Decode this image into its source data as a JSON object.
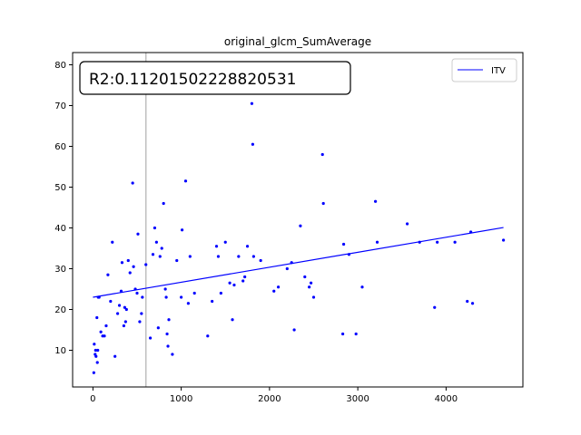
{
  "chart_data": {
    "type": "scatter",
    "title": "original_glcm_SumAverage",
    "xlabel": "",
    "ylabel": "",
    "xlim": [
      -230,
      4870
    ],
    "ylim": [
      1,
      83
    ],
    "x_ticks": [
      0,
      1000,
      2000,
      3000,
      4000
    ],
    "y_ticks": [
      10,
      20,
      30,
      40,
      50,
      60,
      70,
      80
    ],
    "grid": false,
    "legend": {
      "position": "top-right",
      "entries": [
        {
          "label": "ITV",
          "color": "#0000ff"
        }
      ]
    },
    "annotation": {
      "text": "R2:0.11201502228820531",
      "position": "top-left"
    },
    "vline": {
      "x": 600,
      "color": "#bfbfbf"
    },
    "regression": {
      "x": [
        0,
        4650
      ],
      "y": [
        23.0,
        40.1
      ],
      "color": "#0000ff",
      "label": "ITV"
    },
    "points": {
      "color": "#0000ff",
      "x": [
        10,
        15,
        25,
        30,
        35,
        45,
        50,
        55,
        60,
        70,
        90,
        110,
        130,
        150,
        170,
        200,
        220,
        250,
        280,
        300,
        320,
        330,
        350,
        360,
        370,
        380,
        400,
        420,
        450,
        460,
        480,
        500,
        510,
        530,
        550,
        560,
        600,
        650,
        680,
        700,
        720,
        740,
        760,
        780,
        800,
        820,
        830,
        840,
        850,
        860,
        900,
        950,
        1000,
        1010,
        1050,
        1080,
        1100,
        1150,
        1300,
        1350,
        1400,
        1420,
        1450,
        1500,
        1550,
        1580,
        1600,
        1650,
        1700,
        1720,
        1750,
        1800,
        1810,
        1820,
        1900,
        2050,
        2100,
        2200,
        2250,
        2280,
        2350,
        2400,
        2450,
        2470,
        2500,
        2600,
        2610,
        2830,
        2840,
        2900,
        2980,
        3050,
        3200,
        3220,
        3560,
        3700,
        3870,
        3900,
        4100,
        4240,
        4280,
        4300,
        4650
      ],
      "y": [
        4.5,
        11.5,
        9,
        10,
        8.5,
        18,
        7,
        10,
        23,
        23,
        14.5,
        13.5,
        13.5,
        16,
        28.5,
        22,
        36.5,
        8.5,
        19,
        21,
        24.5,
        31.5,
        16,
        20.5,
        17,
        20,
        32,
        29,
        51,
        30.5,
        25,
        24,
        38.5,
        17,
        19,
        23,
        31,
        13,
        33.5,
        40,
        36.5,
        15.5,
        33,
        35,
        46,
        25,
        23,
        14,
        11,
        17.5,
        9,
        32,
        23,
        39.5,
        51.5,
        21.5,
        33,
        24,
        13.5,
        22,
        35.5,
        33,
        24,
        36.5,
        26.5,
        17.5,
        26,
        33,
        27,
        28,
        35.5,
        70.5,
        60.5,
        33,
        32,
        24.5,
        25.5,
        30,
        31.5,
        15,
        40.5,
        28,
        25.5,
        26.5,
        23,
        58,
        46,
        14,
        36,
        33.5,
        14,
        25.5,
        46.5,
        36.5,
        41,
        36.5,
        20.5,
        36.5,
        36.5,
        22,
        39,
        21.5,
        37
      ]
    }
  }
}
